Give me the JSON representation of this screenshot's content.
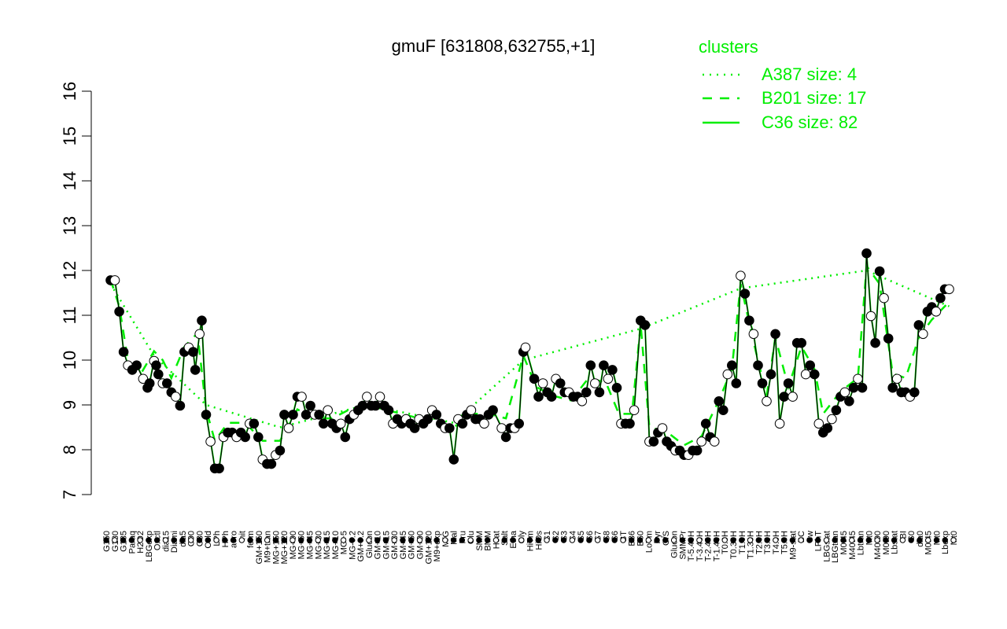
{
  "chart_data": {
    "type": "line",
    "title": "gmuF [631808,632755,+1]",
    "xlabel": "",
    "ylabel": "",
    "ylim": [
      7,
      16
    ],
    "yticks": [
      7,
      8,
      9,
      10,
      11,
      12,
      13,
      14,
      15,
      16
    ],
    "grid": false,
    "legend": {
      "title": "clusters",
      "placement": "top-right",
      "color": "#00ee00",
      "entries": [
        {
          "label": "A387 size: 4",
          "style": "dotted"
        },
        {
          "label": "B201 size: 17",
          "style": "dashed"
        },
        {
          "label": "C36 size: 82",
          "style": "solid"
        }
      ]
    },
    "colors": {
      "line": "#000000",
      "cluster": "#00ee00",
      "point_fill": "#000000",
      "point_alt_fill": "#ffffff"
    },
    "x_tick_labels": [
      "G150",
      "G180",
      "G135",
      "Paraq",
      "H2O2",
      "LBGexp",
      "Oxctl",
      "dia15",
      "Diami",
      "dia5",
      "C90",
      "C30",
      "Cold",
      "LPh",
      "HPh",
      "aero",
      "nit",
      "ferm",
      "GM+150",
      "M9+tran",
      "MG+150",
      "MG+120",
      "MG+90",
      "MG+60",
      "MG+45",
      "MG+30",
      "MG+15",
      "MG+10",
      "MG+5",
      "MG-0.2",
      "GM+0.2",
      "Glucon",
      "GM+10",
      "GM+15",
      "GM+30",
      "GM+45",
      "GM+60",
      "GM+90",
      "GM+120",
      "M9+exp",
      "M/G",
      "Mal",
      "Fru",
      "Glu",
      "SMM",
      "BMM",
      "Heat",
      "Salt",
      "Etha",
      "Gly",
      "HiTm",
      "HiOs",
      "S1",
      "S2",
      "S3",
      "S4",
      "S5",
      "S6",
      "S7",
      "S8",
      "S6",
      "BT",
      "B36",
      "B60",
      "LoTm",
      "Pyr",
      "G/S",
      "Glucon",
      "SMMPr",
      "T-5.40H",
      "T-3.40H",
      "T-2.40H",
      "T-1.40H",
      "T0.0H",
      "T0.30H",
      "T1.0H",
      "T1.30H",
      "T2.0H",
      "T3.0H",
      "T4.0H",
      "T5.0H",
      "M9-stat",
      "BC",
      "Sw",
      "LPhT",
      "LBGstat",
      "LBGtran",
      "M0t45",
      "M40t45",
      "Lbtran",
      "Mt0",
      "M40t90",
      "M0t90",
      "Lbstat",
      "BI",
      "S0",
      "dia0",
      "M0t45",
      "Mt0",
      "Lbexp",
      "Mt0"
    ],
    "series": [
      {
        "cluster": "C36",
        "style": "solid",
        "points": [
          [
            2,
            11.8
          ],
          [
            4,
            11.8
          ],
          [
            6,
            11.1
          ],
          [
            8,
            10.2
          ],
          [
            10,
            9.9
          ],
          [
            12,
            9.8
          ],
          [
            14,
            9.9
          ],
          [
            17,
            9.6
          ],
          [
            19,
            9.4
          ],
          [
            20,
            9.5
          ],
          [
            22,
            10.0
          ],
          [
            23,
            9.9
          ],
          [
            24,
            9.7
          ],
          [
            26,
            9.5
          ],
          [
            28,
            9.5
          ],
          [
            30,
            9.3
          ],
          [
            32,
            9.2
          ],
          [
            34,
            9.0
          ],
          [
            36,
            10.2
          ],
          [
            38,
            10.3
          ],
          [
            40,
            10.2
          ],
          [
            41,
            9.8
          ],
          [
            43,
            10.6
          ],
          [
            44,
            10.9
          ],
          [
            46,
            8.8
          ],
          [
            48,
            8.2
          ],
          [
            50,
            7.6
          ],
          [
            52,
            7.6
          ],
          [
            54,
            8.3
          ],
          [
            56,
            8.4
          ],
          [
            58,
            8.4
          ],
          [
            60,
            8.3
          ],
          [
            62,
            8.4
          ],
          [
            64,
            8.3
          ],
          [
            66,
            8.6
          ],
          [
            68,
            8.6
          ],
          [
            70,
            8.3
          ],
          [
            72,
            7.8
          ],
          [
            74,
            7.7
          ],
          [
            76,
            7.7
          ],
          [
            78,
            7.9
          ],
          [
            80,
            8.0
          ],
          [
            82,
            8.8
          ],
          [
            84,
            8.5
          ],
          [
            86,
            8.8
          ],
          [
            88,
            9.2
          ],
          [
            90,
            9.2
          ],
          [
            92,
            8.8
          ],
          [
            94,
            9.0
          ],
          [
            96,
            8.8
          ],
          [
            98,
            8.8
          ],
          [
            100,
            8.6
          ],
          [
            102,
            8.9
          ],
          [
            104,
            8.6
          ],
          [
            106,
            8.5
          ],
          [
            108,
            8.6
          ],
          [
            110,
            8.3
          ],
          [
            112,
            8.7
          ],
          [
            114,
            8.8
          ],
          [
            116,
            8.9
          ],
          [
            118,
            9.0
          ],
          [
            120,
            9.2
          ],
          [
            122,
            9.0
          ],
          [
            124,
            9.0
          ],
          [
            126,
            9.2
          ],
          [
            128,
            9.0
          ],
          [
            130,
            8.9
          ],
          [
            132,
            8.6
          ],
          [
            134,
            8.7
          ],
          [
            136,
            8.6
          ],
          [
            138,
            8.7
          ],
          [
            140,
            8.6
          ],
          [
            142,
            8.5
          ],
          [
            144,
            8.7
          ],
          [
            146,
            8.6
          ],
          [
            148,
            8.7
          ],
          [
            150,
            8.9
          ],
          [
            152,
            8.8
          ],
          [
            154,
            8.6
          ],
          [
            156,
            8.5
          ],
          [
            158,
            8.5
          ],
          [
            160,
            7.8
          ],
          [
            162,
            8.7
          ],
          [
            164,
            8.6
          ],
          [
            166,
            8.8
          ],
          [
            168,
            8.9
          ],
          [
            170,
            8.7
          ],
          [
            172,
            8.7
          ],
          [
            174,
            8.6
          ],
          [
            176,
            8.8
          ],
          [
            178,
            8.9
          ],
          [
            182,
            8.5
          ],
          [
            184,
            8.3
          ],
          [
            186,
            8.5
          ],
          [
            188,
            8.5
          ],
          [
            190,
            8.6
          ],
          [
            192,
            10.2
          ],
          [
            193,
            10.3
          ],
          [
            197,
            9.6
          ],
          [
            199,
            9.2
          ],
          [
            201,
            9.5
          ],
          [
            203,
            9.3
          ],
          [
            205,
            9.2
          ],
          [
            207,
            9.6
          ],
          [
            209,
            9.5
          ],
          [
            211,
            9.3
          ],
          [
            213,
            9.3
          ],
          [
            215,
            9.2
          ],
          [
            217,
            9.2
          ],
          [
            219,
            9.1
          ],
          [
            221,
            9.3
          ],
          [
            223,
            9.9
          ],
          [
            225,
            9.5
          ],
          [
            227,
            9.3
          ],
          [
            229,
            9.9
          ],
          [
            231,
            9.6
          ],
          [
            233,
            9.8
          ],
          [
            235,
            9.4
          ],
          [
            237,
            8.6
          ],
          [
            239,
            8.6
          ],
          [
            241,
            8.6
          ],
          [
            243,
            8.9
          ],
          [
            246,
            10.9
          ],
          [
            248,
            10.8
          ],
          [
            250,
            8.2
          ],
          [
            252,
            8.2
          ],
          [
            254,
            8.4
          ],
          [
            256,
            8.5
          ],
          [
            258,
            8.2
          ],
          [
            260,
            8.1
          ],
          [
            262,
            8.0
          ],
          [
            264,
            8.0
          ],
          [
            266,
            7.9
          ],
          [
            268,
            7.9
          ],
          [
            270,
            8.0
          ],
          [
            272,
            8.0
          ],
          [
            274,
            8.2
          ],
          [
            276,
            8.6
          ],
          [
            278,
            8.3
          ],
          [
            280,
            8.2
          ],
          [
            282,
            9.1
          ],
          [
            284,
            8.9
          ],
          [
            286,
            9.7
          ],
          [
            288,
            9.9
          ],
          [
            290,
            9.5
          ],
          [
            292,
            11.9
          ],
          [
            294,
            11.5
          ],
          [
            296,
            10.9
          ],
          [
            298,
            10.6
          ],
          [
            300,
            9.9
          ],
          [
            302,
            9.5
          ],
          [
            304,
            9.1
          ],
          [
            306,
            9.7
          ],
          [
            308,
            10.6
          ],
          [
            310,
            8.6
          ],
          [
            312,
            9.2
          ],
          [
            314,
            9.5
          ],
          [
            316,
            9.2
          ],
          [
            318,
            10.4
          ],
          [
            320,
            10.4
          ],
          [
            322,
            9.7
          ],
          [
            324,
            9.9
          ],
          [
            326,
            9.7
          ],
          [
            328,
            8.6
          ],
          [
            330,
            8.4
          ],
          [
            332,
            8.5
          ],
          [
            334,
            8.7
          ],
          [
            336,
            8.9
          ],
          [
            338,
            9.2
          ],
          [
            340,
            9.3
          ],
          [
            342,
            9.1
          ],
          [
            344,
            9.4
          ],
          [
            346,
            9.6
          ],
          [
            348,
            9.4
          ],
          [
            350,
            12.4
          ],
          [
            352,
            11.0
          ],
          [
            354,
            10.4
          ],
          [
            356,
            12.0
          ],
          [
            358,
            11.4
          ],
          [
            360,
            10.5
          ],
          [
            362,
            9.4
          ],
          [
            364,
            9.6
          ],
          [
            366,
            9.3
          ],
          [
            368,
            9.3
          ],
          [
            370,
            9.2
          ],
          [
            372,
            9.3
          ],
          [
            374,
            10.8
          ],
          [
            376,
            10.6
          ],
          [
            378,
            11.1
          ],
          [
            380,
            11.2
          ],
          [
            382,
            11.1
          ],
          [
            384,
            11.4
          ],
          [
            386,
            11.6
          ],
          [
            388,
            11.6
          ]
        ]
      },
      {
        "cluster": "B201",
        "style": "dashed",
        "points": [
          [
            2,
            11.8
          ],
          [
            6,
            11.2
          ],
          [
            10,
            10.0
          ],
          [
            16,
            9.7
          ],
          [
            22,
            10.2
          ],
          [
            26,
            10.0
          ],
          [
            30,
            9.6
          ],
          [
            36,
            10.3
          ],
          [
            42,
            10.6
          ],
          [
            46,
            8.9
          ],
          [
            50,
            8.2
          ],
          [
            56,
            8.6
          ],
          [
            64,
            8.6
          ],
          [
            72,
            8.2
          ],
          [
            80,
            8.2
          ],
          [
            88,
            8.9
          ],
          [
            96,
            8.7
          ],
          [
            104,
            8.7
          ],
          [
            112,
            8.9
          ],
          [
            120,
            9.0
          ],
          [
            128,
            8.9
          ],
          [
            136,
            8.8
          ],
          [
            144,
            8.7
          ],
          [
            152,
            8.6
          ],
          [
            160,
            8.5
          ],
          [
            168,
            8.8
          ],
          [
            176,
            8.8
          ],
          [
            184,
            8.7
          ],
          [
            192,
            10.1
          ],
          [
            198,
            9.4
          ],
          [
            206,
            9.2
          ],
          [
            214,
            9.1
          ],
          [
            222,
            9.6
          ],
          [
            230,
            9.5
          ],
          [
            236,
            8.8
          ],
          [
            242,
            8.8
          ],
          [
            246,
            10.8
          ],
          [
            250,
            8.5
          ],
          [
            258,
            8.4
          ],
          [
            266,
            8.1
          ],
          [
            274,
            8.3
          ],
          [
            282,
            9.1
          ],
          [
            288,
            9.8
          ],
          [
            292,
            11.7
          ],
          [
            298,
            10.4
          ],
          [
            304,
            9.2
          ],
          [
            308,
            10.5
          ],
          [
            314,
            9.4
          ],
          [
            320,
            10.3
          ],
          [
            326,
            9.8
          ],
          [
            330,
            8.8
          ],
          [
            338,
            9.3
          ],
          [
            346,
            9.6
          ],
          [
            350,
            12.1
          ],
          [
            356,
            11.7
          ],
          [
            362,
            9.7
          ],
          [
            368,
            9.6
          ],
          [
            374,
            10.5
          ],
          [
            380,
            10.9
          ],
          [
            388,
            11.3
          ]
        ]
      },
      {
        "cluster": "A387",
        "style": "dotted",
        "points": [
          [
            2,
            11.7
          ],
          [
            22,
            10.1
          ],
          [
            46,
            9.0
          ],
          [
            80,
            8.5
          ],
          [
            120,
            9.0
          ],
          [
            160,
            8.6
          ],
          [
            192,
            10.0
          ],
          [
            246,
            10.7
          ],
          [
            292,
            11.6
          ],
          [
            350,
            12.0
          ],
          [
            388,
            11.2
          ]
        ]
      }
    ]
  }
}
